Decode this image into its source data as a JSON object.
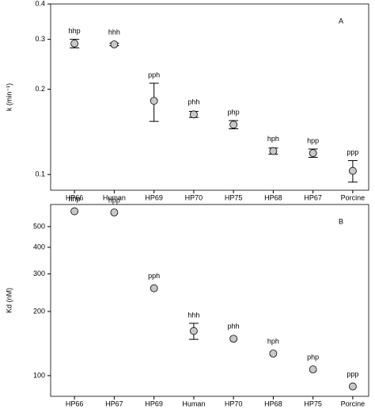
{
  "chart_data": [
    {
      "type": "scatter",
      "panel": "A",
      "y_label": "k (min⁻¹)",
      "log_y": true,
      "categories": [
        "HP66",
        "Human",
        "HP69",
        "HP70",
        "HP75",
        "HP68",
        "HP67",
        "Porcine"
      ],
      "values": [
        0.29,
        0.288,
        0.182,
        0.163,
        0.15,
        0.121,
        0.119,
        0.103
      ],
      "errors": [
        0.01,
        0.003,
        0.028,
        0.004,
        0.005,
        0.003,
        0.004,
        0.009
      ],
      "point_labels": [
        "hhp",
        "hhh",
        "pph",
        "phh",
        "php",
        "hph",
        "hpp",
        "ppp"
      ],
      "color": "#c8c8c8",
      "ylim": [
        0.088,
        0.4
      ],
      "yticks": [
        0.1,
        0.2,
        0.3,
        0.4
      ]
    },
    {
      "type": "scatter",
      "panel": "B",
      "y_label": "Kd (nM)",
      "log_y": true,
      "categories": [
        "HP66",
        "HP67",
        "HP69",
        "Human",
        "HP70",
        "HP68",
        "HP75",
        "Porcine"
      ],
      "values": [
        590,
        583,
        257,
        162,
        149,
        127,
        107,
        89
      ],
      "errors": [
        null,
        null,
        null,
        14,
        null,
        null,
        null,
        null
      ],
      "point_labels": [
        "hhp",
        "hpp",
        "pph",
        "hhh",
        "phh",
        "hph",
        "php",
        "ppp"
      ],
      "color": "#c8c8c8",
      "ylim": [
        80,
        635
      ],
      "yticks": [
        100,
        200,
        300,
        400,
        500
      ]
    }
  ]
}
